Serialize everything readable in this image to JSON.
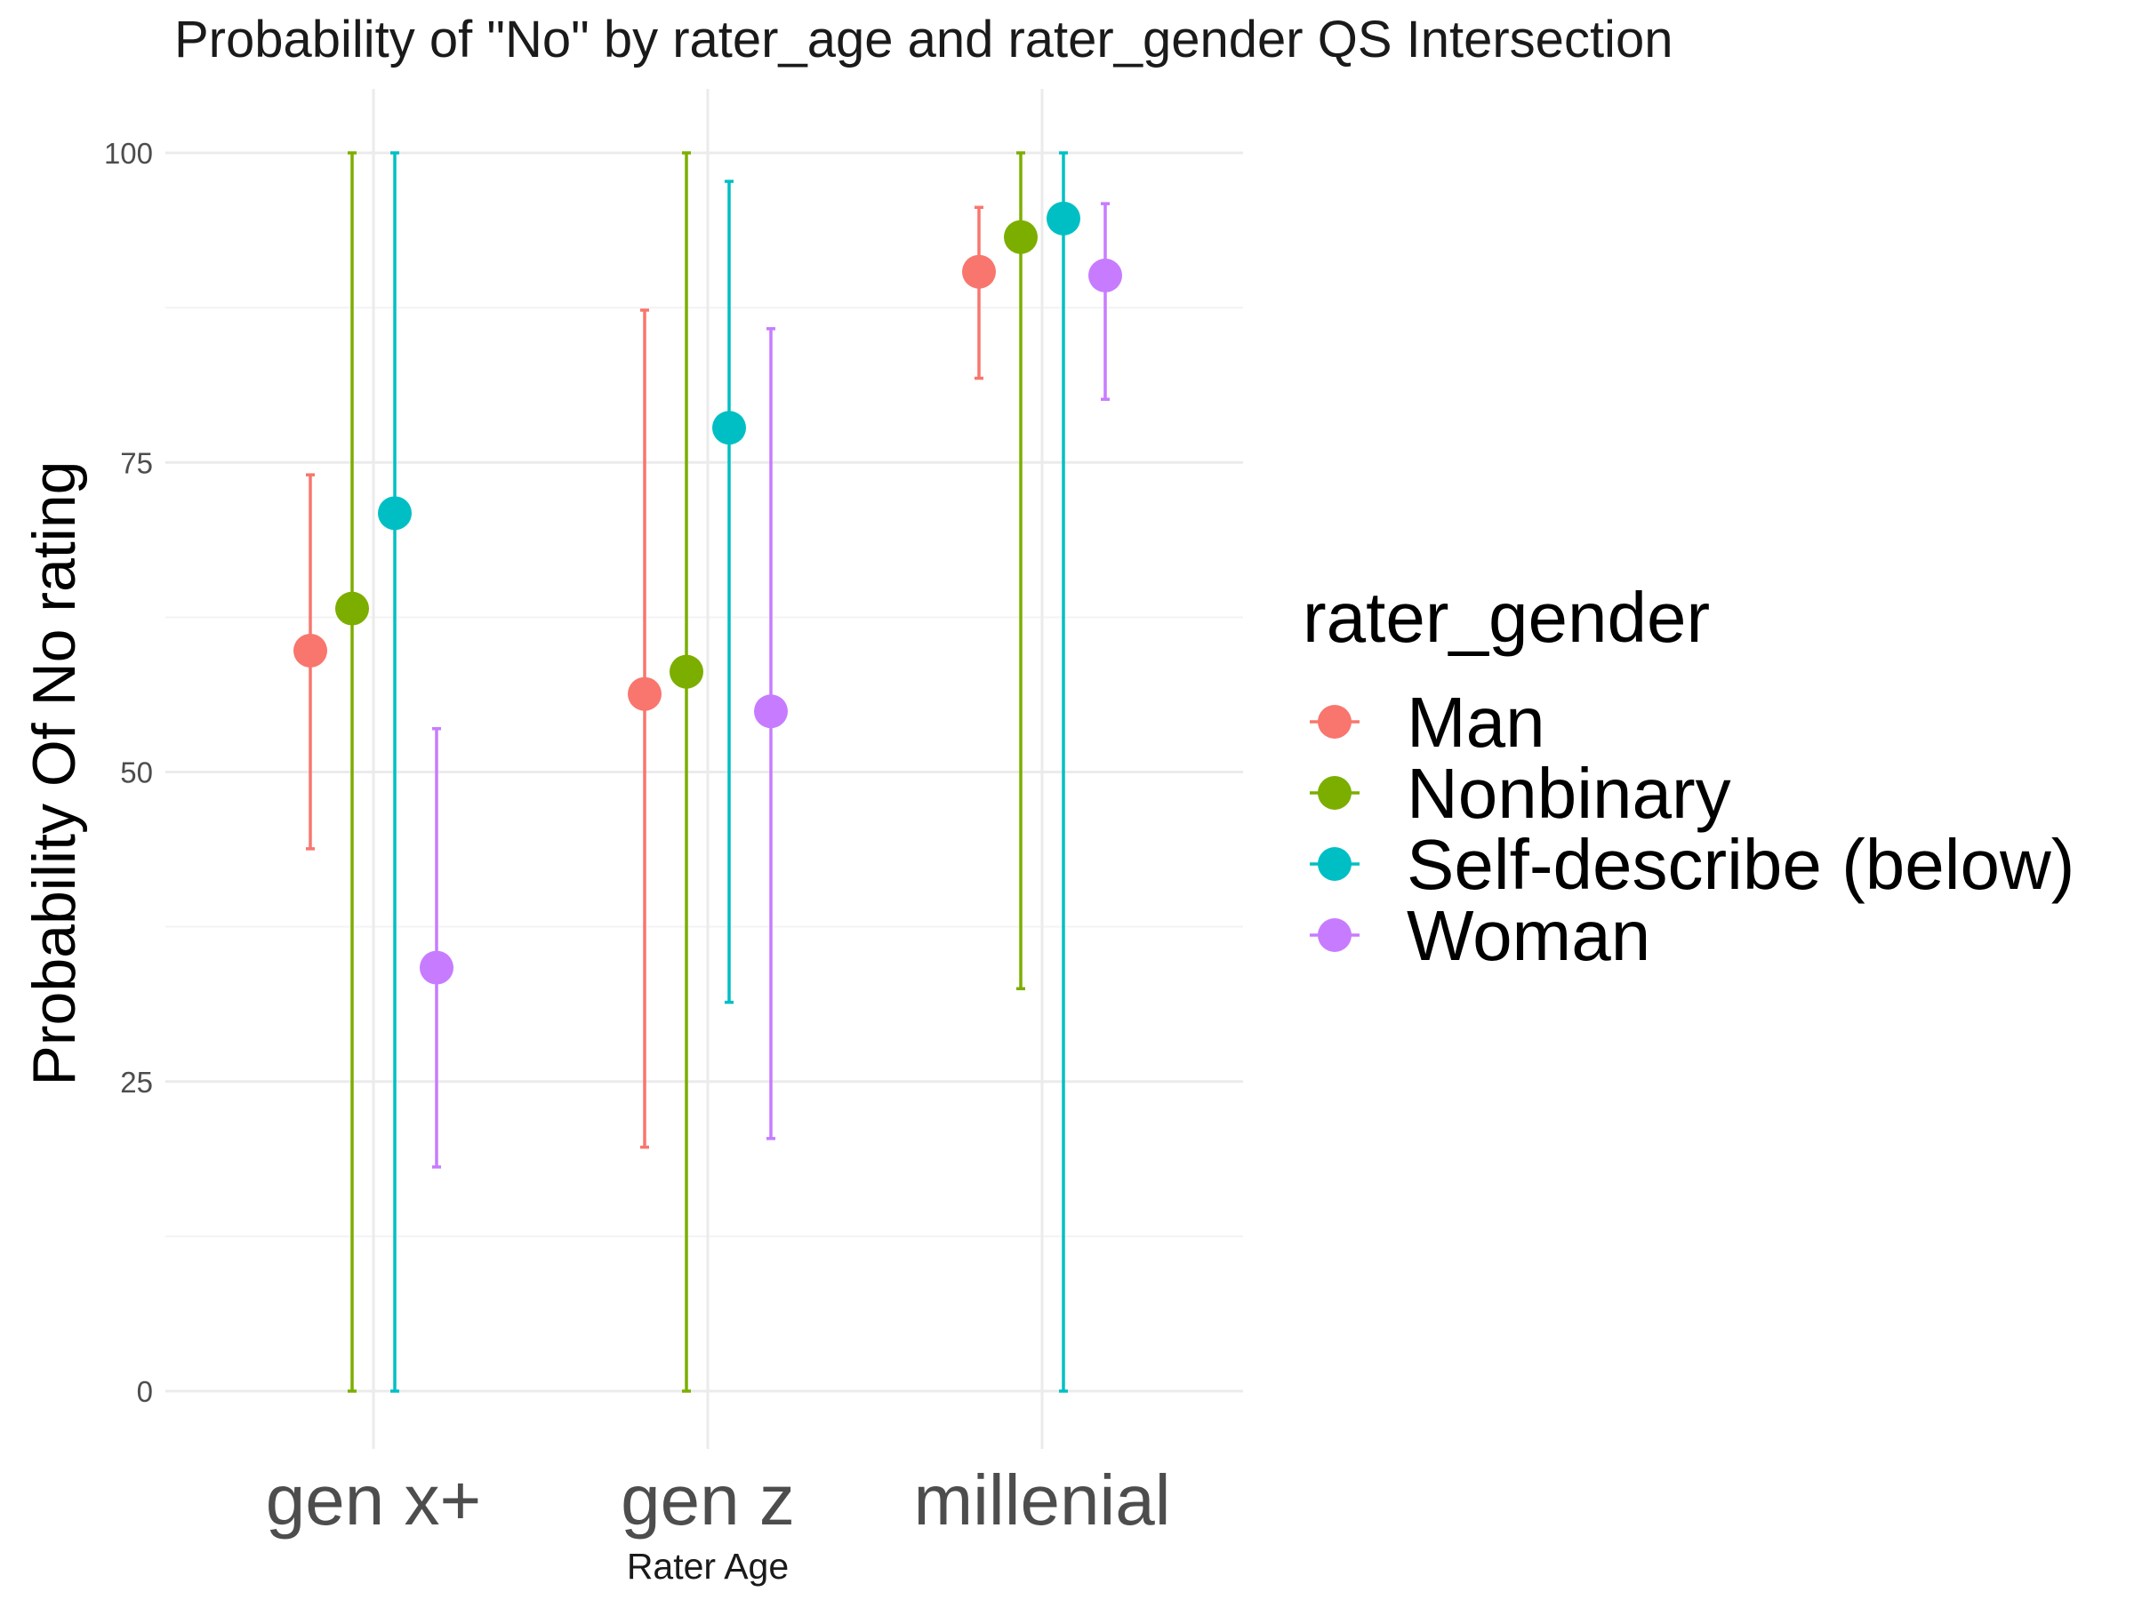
{
  "chart_data": {
    "type": "scatter",
    "subtype": "point-range",
    "title": "Probability of \"No\" by rater_age and  rater_gender  QS Intersection",
    "xlabel": "Rater Age",
    "ylabel": "Probability Of No rating",
    "categories": [
      "gen x+",
      "gen z",
      "millenial"
    ],
    "ylim": [
      -5,
      105
    ],
    "yticks": [
      0,
      25,
      50,
      75,
      100
    ],
    "grid": true,
    "legend": {
      "title": "rater_gender",
      "position": "right"
    },
    "series": [
      {
        "name": "Man",
        "color": "#F8766D",
        "points": [
          {
            "x": "gen x+",
            "y": 59.8,
            "low": 43.8,
            "high": 74.0
          },
          {
            "x": "gen z",
            "y": 56.3,
            "low": 19.7,
            "high": 87.3
          },
          {
            "x": "millenial",
            "y": 90.4,
            "low": 81.8,
            "high": 95.6
          }
        ]
      },
      {
        "name": "Nonbinary",
        "color": "#7CAE00",
        "points": [
          {
            "x": "gen x+",
            "y": 63.2,
            "low": 0.0,
            "high": 100.0
          },
          {
            "x": "gen z",
            "y": 58.1,
            "low": 0.0,
            "high": 100.0
          },
          {
            "x": "millenial",
            "y": 93.2,
            "low": 32.5,
            "high": 100.0
          }
        ]
      },
      {
        "name": "Self-describe (below)",
        "color": "#00BFC4",
        "points": [
          {
            "x": "gen x+",
            "y": 70.9,
            "low": 0.0,
            "high": 100.0
          },
          {
            "x": "gen z",
            "y": 77.8,
            "low": 31.4,
            "high": 97.7
          },
          {
            "x": "millenial",
            "y": 94.7,
            "low": 0.0,
            "high": 100.0
          }
        ]
      },
      {
        "name": "Woman",
        "color": "#C77CFF",
        "points": [
          {
            "x": "gen x+",
            "y": 34.2,
            "low": 18.1,
            "high": 53.5
          },
          {
            "x": "gen z",
            "y": 54.9,
            "low": 20.4,
            "high": 85.8
          },
          {
            "x": "millenial",
            "y": 90.1,
            "low": 80.1,
            "high": 95.9
          }
        ]
      }
    ]
  }
}
